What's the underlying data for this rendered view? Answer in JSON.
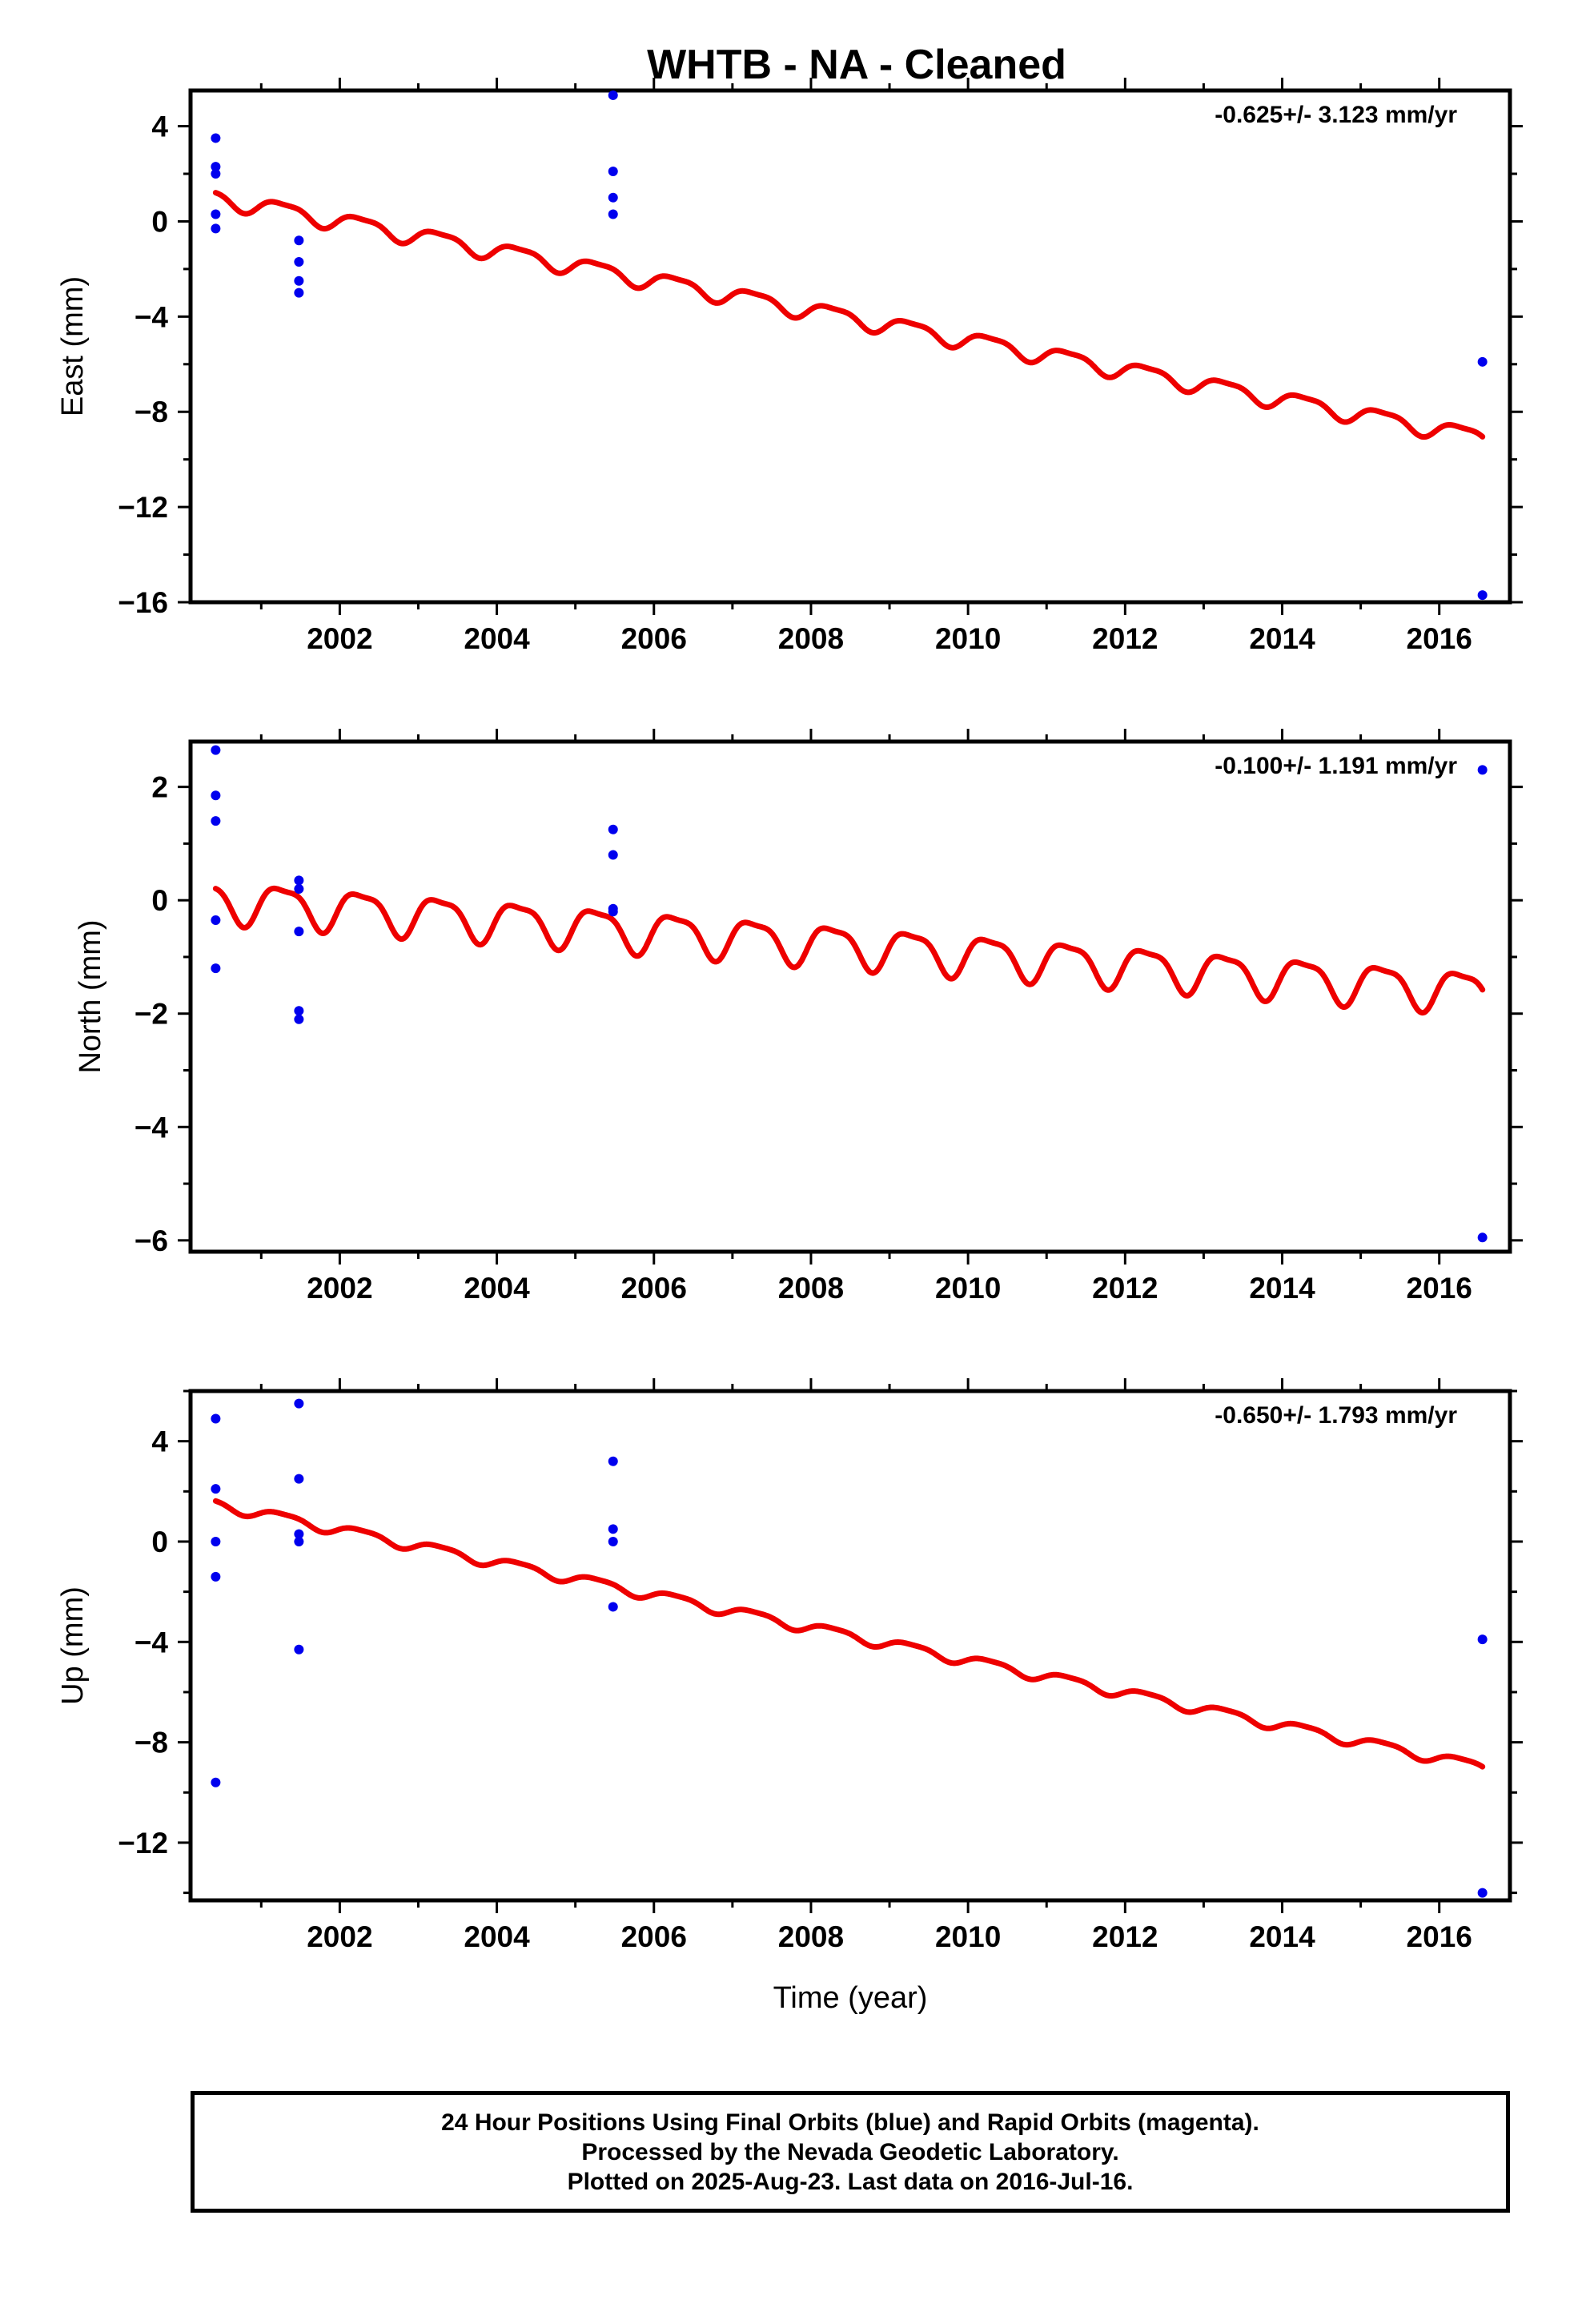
{
  "chart_data": {
    "type": "scatter",
    "title": "WHTB  - NA - Cleaned",
    "xlabel": "Time (year)",
    "xlim": [
      2000.1,
      2016.9
    ],
    "xticks": [
      2002,
      2004,
      2006,
      2008,
      2010,
      2012,
      2014,
      2016
    ],
    "colors": {
      "points": "#0000ee",
      "model": "#ee0000",
      "frame": "#000000"
    },
    "panels": [
      {
        "ylabel": "East (mm)",
        "rate": "-0.625+/- 3.123 mm/yr",
        "ylim": [
          -16,
          5.5
        ],
        "yticks": [
          4,
          0,
          -4,
          -8,
          -12,
          -16
        ],
        "points": [
          [
            2000.42,
            3.5
          ],
          [
            2000.42,
            2.3
          ],
          [
            2000.42,
            2.0
          ],
          [
            2000.42,
            0.3
          ],
          [
            2000.42,
            -0.3
          ],
          [
            2001.48,
            -0.8
          ],
          [
            2001.48,
            -1.7
          ],
          [
            2001.48,
            -2.5
          ],
          [
            2001.48,
            -3.0
          ],
          [
            2005.48,
            5.3
          ],
          [
            2005.48,
            2.1
          ],
          [
            2005.48,
            1.0
          ],
          [
            2005.48,
            0.3
          ],
          [
            2016.55,
            -5.9
          ],
          [
            2016.55,
            -15.7
          ]
        ],
        "model": {
          "start": 2000.42,
          "end": 2016.55,
          "offset": 1.0,
          "slope": -0.625,
          "amp1": 0.35,
          "phase1": 0.4,
          "amp2": 0.1,
          "phase2": 0.0
        }
      },
      {
        "ylabel": "North (mm)",
        "rate": "-0.100+/- 1.191 mm/yr",
        "ylim": [
          -6.2,
          2.8
        ],
        "yticks": [
          2,
          0,
          -2,
          -4,
          -6
        ],
        "points": [
          [
            2000.42,
            2.65
          ],
          [
            2000.42,
            1.85
          ],
          [
            2000.42,
            1.4
          ],
          [
            2000.42,
            -0.35
          ],
          [
            2000.42,
            -1.2
          ],
          [
            2001.48,
            0.35
          ],
          [
            2001.48,
            0.2
          ],
          [
            2001.48,
            -0.55
          ],
          [
            2001.48,
            -1.95
          ],
          [
            2001.48,
            -2.1
          ],
          [
            2005.48,
            1.25
          ],
          [
            2005.48,
            0.8
          ],
          [
            2005.48,
            -0.15
          ],
          [
            2005.48,
            -0.2
          ],
          [
            2016.55,
            2.3
          ],
          [
            2016.55,
            -5.95
          ]
        ],
        "model": {
          "start": 2000.42,
          "end": 2016.55,
          "offset": 0.0,
          "slope": -0.1,
          "amp1": 0.35,
          "phase1": 0.4,
          "amp2": 0.1,
          "phase2": 0.0
        }
      },
      {
        "ylabel": "Up (mm)",
        "rate": "-0.650+/- 1.793 mm/yr",
        "ylim": [
          -14.3,
          6.0
        ],
        "yticks": [
          4,
          0,
          -4,
          -8,
          -12
        ],
        "points": [
          [
            2000.42,
            4.9
          ],
          [
            2000.42,
            2.1
          ],
          [
            2000.42,
            0.0
          ],
          [
            2000.42,
            -1.4
          ],
          [
            2000.42,
            -9.6
          ],
          [
            2001.48,
            5.5
          ],
          [
            2001.48,
            2.5
          ],
          [
            2001.48,
            0.3
          ],
          [
            2001.48,
            0.0
          ],
          [
            2001.48,
            -4.3
          ],
          [
            2005.48,
            3.2
          ],
          [
            2005.48,
            0.5
          ],
          [
            2005.48,
            0.0
          ],
          [
            2005.48,
            -2.6
          ],
          [
            2016.55,
            -3.9
          ],
          [
            2016.55,
            -14.0
          ]
        ],
        "model": {
          "start": 2000.42,
          "end": 2016.55,
          "offset": 1.5,
          "slope": -0.65,
          "amp1": 0.2,
          "phase1": 0.4,
          "amp2": 0.05,
          "phase2": 0.0
        }
      }
    ]
  },
  "footer": {
    "line1": "24 Hour Positions Using Final Orbits (blue) and Rapid Orbits (magenta).",
    "line2": "Processed by the Nevada Geodetic Laboratory.",
    "line3": "Plotted on 2025-Aug-23. Last data on 2016-Jul-16."
  }
}
